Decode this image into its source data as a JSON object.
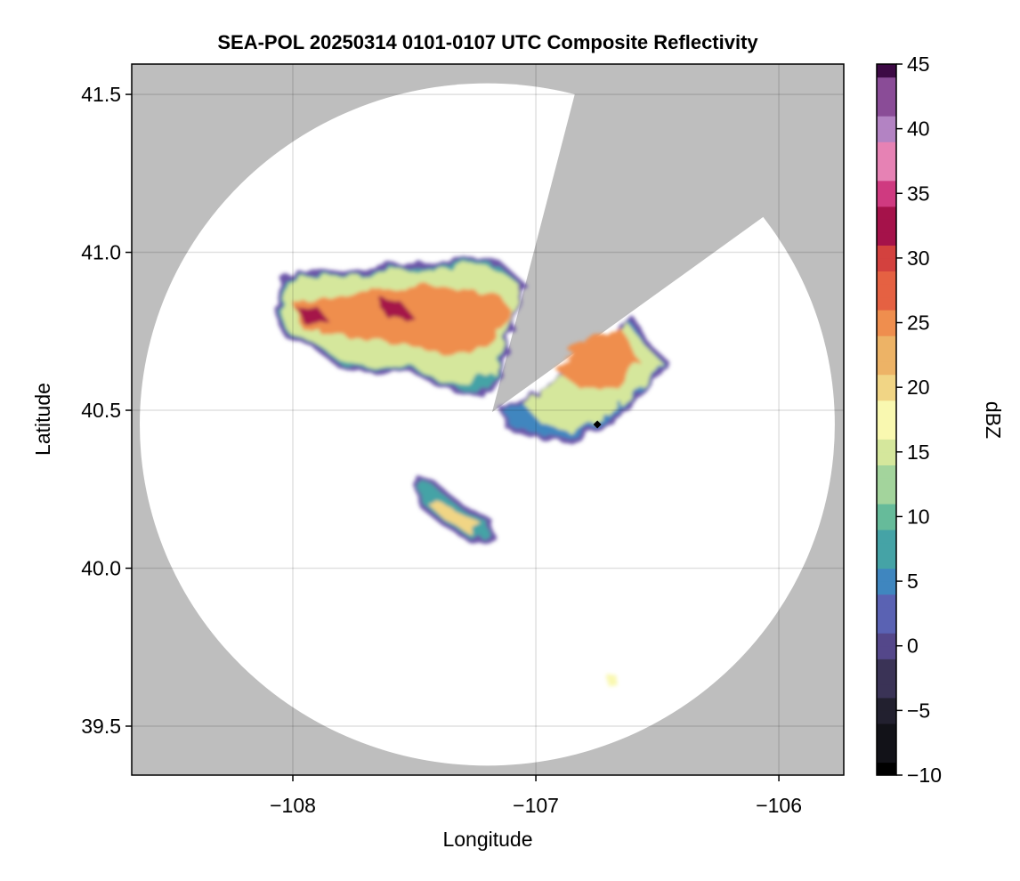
{
  "chart_data": {
    "type": "heatmap",
    "title": "SEA-POL 20250314 0101-0107 UTC Composite Reflectivity",
    "xlabel": "Longitude",
    "ylabel": "Latitude",
    "xlim": [
      -108.663,
      -105.733
    ],
    "ylim": [
      39.345,
      41.596
    ],
    "xticks": [
      -108,
      -107,
      -106
    ],
    "xtick_labels": [
      "−108",
      "−107",
      "−106"
    ],
    "yticks": [
      39.5,
      40.0,
      40.5,
      41.0,
      41.5
    ],
    "ytick_labels": [
      "39.5",
      "40.0",
      "40.5",
      "41.0",
      "41.5"
    ],
    "grid": true,
    "no_data_color": "#bebebe",
    "radar_coverage": {
      "center_lon": -107.2,
      "center_lat": 40.455,
      "radius_lon": 1.43,
      "radius_lat": 1.08,
      "blocked_sector_apex": [
        -107.18,
        40.494
      ],
      "blocked_sector_edges": [
        [
          -106.83,
          41.53
        ],
        [
          -106.05,
          41.12
        ]
      ]
    },
    "marker": {
      "lon": -106.747,
      "lat": 40.455,
      "shape": "diamond",
      "color": "#000000"
    },
    "echoes": [
      {
        "name": "northwest-band",
        "level": "edge",
        "dbz": 8,
        "polygon": [
          [
            -108.04,
            40.911
          ],
          [
            -107.941,
            40.939
          ],
          [
            -107.74,
            40.931
          ],
          [
            -107.593,
            40.959
          ],
          [
            -107.447,
            40.954
          ],
          [
            -107.3,
            40.982
          ],
          [
            -107.154,
            40.968
          ],
          [
            -107.051,
            40.897
          ],
          [
            -107.088,
            40.813
          ],
          [
            -107.154,
            40.615
          ],
          [
            -107.19,
            40.559
          ],
          [
            -107.3,
            40.559
          ],
          [
            -107.41,
            40.587
          ],
          [
            -107.52,
            40.63
          ],
          [
            -107.667,
            40.621
          ],
          [
            -107.813,
            40.644
          ],
          [
            -107.905,
            40.7
          ],
          [
            -108.033,
            40.742
          ],
          [
            -108.07,
            40.813
          ]
        ]
      },
      {
        "name": "northwest-band",
        "level": "light",
        "dbz": 16,
        "polygon": [
          [
            -108.02,
            40.9
          ],
          [
            -107.94,
            40.925
          ],
          [
            -107.74,
            40.92
          ],
          [
            -107.59,
            40.945
          ],
          [
            -107.45,
            40.94
          ],
          [
            -107.3,
            40.965
          ],
          [
            -107.16,
            40.95
          ],
          [
            -107.06,
            40.89
          ],
          [
            -107.1,
            40.8
          ],
          [
            -107.17,
            40.62
          ],
          [
            -107.3,
            40.58
          ],
          [
            -107.41,
            40.6
          ],
          [
            -107.52,
            40.645
          ],
          [
            -107.667,
            40.635
          ],
          [
            -107.81,
            40.66
          ],
          [
            -107.9,
            40.71
          ],
          [
            -108.02,
            40.75
          ],
          [
            -108.05,
            40.82
          ]
        ]
      },
      {
        "name": "northwest-band",
        "level": "core",
        "dbz": 25,
        "polygon": [
          [
            -107.996,
            40.841
          ],
          [
            -107.74,
            40.869
          ],
          [
            -107.484,
            40.897
          ],
          [
            -107.154,
            40.869
          ],
          [
            -107.099,
            40.813
          ],
          [
            -107.19,
            40.7
          ],
          [
            -107.374,
            40.672
          ],
          [
            -107.557,
            40.714
          ],
          [
            -107.74,
            40.728
          ],
          [
            -107.96,
            40.756
          ]
        ]
      },
      {
        "name": "northwest-band",
        "level": "peak",
        "dbz": 33,
        "polygon": [
          [
            -107.98,
            40.82
          ],
          [
            -107.9,
            40.83
          ],
          [
            -107.85,
            40.78
          ],
          [
            -107.95,
            40.77
          ]
        ]
      },
      {
        "name": "northwest-band",
        "level": "peak",
        "dbz": 33,
        "polygon": [
          [
            -107.65,
            40.86
          ],
          [
            -107.55,
            40.84
          ],
          [
            -107.5,
            40.79
          ],
          [
            -107.62,
            40.8
          ]
        ]
      },
      {
        "name": "east-cell",
        "level": "edge",
        "dbz": 4,
        "polygon": [
          [
            -107.136,
            40.497
          ],
          [
            -106.971,
            40.559
          ],
          [
            -106.604,
            40.79
          ],
          [
            -106.531,
            40.7
          ],
          [
            -106.458,
            40.649
          ],
          [
            -106.568,
            40.559
          ],
          [
            -106.678,
            40.475
          ],
          [
            -106.861,
            40.404
          ],
          [
            -107.007,
            40.418
          ],
          [
            -107.117,
            40.446
          ]
        ]
      },
      {
        "name": "east-cell",
        "level": "light",
        "dbz": 15,
        "polygon": [
          [
            -107.05,
            40.52
          ],
          [
            -106.95,
            40.575
          ],
          [
            -106.62,
            40.775
          ],
          [
            -106.545,
            40.7
          ],
          [
            -106.48,
            40.65
          ],
          [
            -106.58,
            40.565
          ],
          [
            -106.69,
            40.49
          ],
          [
            -106.86,
            40.43
          ],
          [
            -106.98,
            40.46
          ]
        ]
      },
      {
        "name": "east-cell",
        "level": "core",
        "dbz": 26,
        "polygon": [
          [
            -106.92,
            40.63
          ],
          [
            -106.8,
            40.73
          ],
          [
            -106.65,
            40.76
          ],
          [
            -106.58,
            40.66
          ],
          [
            -106.66,
            40.57
          ],
          [
            -106.82,
            40.57
          ]
        ]
      },
      {
        "name": "south-cell",
        "level": "edge",
        "dbz": 8,
        "polygon": [
          [
            -107.484,
            40.292
          ],
          [
            -107.41,
            40.263
          ],
          [
            -107.3,
            40.193
          ],
          [
            -107.19,
            40.151
          ],
          [
            -107.172,
            40.094
          ],
          [
            -107.282,
            40.094
          ],
          [
            -107.374,
            40.137
          ],
          [
            -107.465,
            40.193
          ],
          [
            -107.491,
            40.249
          ]
        ]
      },
      {
        "name": "south-cell",
        "level": "core",
        "dbz": 20,
        "polygon": [
          [
            -107.42,
            40.22
          ],
          [
            -107.33,
            40.185
          ],
          [
            -107.22,
            40.14
          ],
          [
            -107.27,
            40.11
          ],
          [
            -107.37,
            40.15
          ],
          [
            -107.44,
            40.2
          ]
        ]
      },
      {
        "name": "southeast-speck",
        "level": "light",
        "dbz": 17,
        "polygon": [
          [
            -106.71,
            39.665
          ],
          [
            -106.68,
            39.67
          ],
          [
            -106.67,
            39.635
          ],
          [
            -106.7,
            39.625
          ]
        ]
      }
    ],
    "colorbar": {
      "label": "dBZ",
      "range": [
        -10,
        45
      ],
      "ticks": [
        -10,
        -5,
        0,
        5,
        10,
        15,
        20,
        25,
        30,
        35,
        40,
        45
      ],
      "tick_labels": [
        "−10",
        "−5",
        "0",
        "5",
        "10",
        "15",
        "20",
        "25",
        "30",
        "35",
        "40",
        "45"
      ],
      "step": 1,
      "colors": [
        "#000000",
        "#121218",
        "#22202f",
        "#3a3356",
        "#54478a",
        "#5a62b3",
        "#3f86bf",
        "#45a3a6",
        "#66bb9a",
        "#a3d49c",
        "#d5e79c",
        "#f9f8b0",
        "#f1d585",
        "#edb366",
        "#ef8e4e",
        "#e56142",
        "#d3413e",
        "#a5124a",
        "#cf3a80",
        "#e682b4",
        "#b383c3",
        "#8a4c97",
        "#3d0a45"
      ]
    }
  }
}
